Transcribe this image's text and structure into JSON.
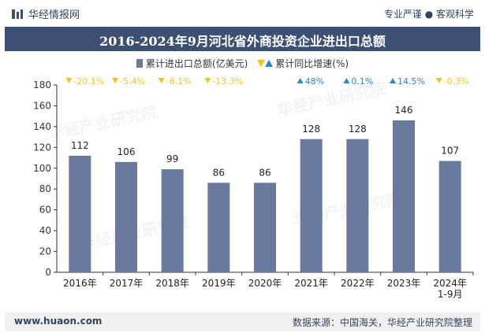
{
  "header": {
    "brand": "华经情报网",
    "slogan": "专业严谨 ● 客观科学"
  },
  "watermark": "华经产业研究院",
  "chart_data": {
    "type": "bar",
    "title": "2016-2024年9月河北省外商投资企业进出口总额",
    "categories": [
      "2016年",
      "2017年",
      "2018年",
      "2019年",
      "2020年",
      "2021年",
      "2022年",
      "2023年",
      "2024年\n1-9月"
    ],
    "series": [
      {
        "name": "累计进出口总额(亿美元)",
        "values": [
          112,
          106,
          99,
          86,
          86,
          128,
          128,
          146,
          107
        ],
        "color": "#6a7a9f"
      }
    ],
    "growth": {
      "name": "累计同比增速(%)",
      "labels": [
        "-20.1%",
        "-5.4%",
        "-6.1%",
        "-13.3%",
        "",
        "48%",
        "0.1%",
        "14.5%",
        "-0.3%"
      ],
      "direction": [
        "down",
        "down",
        "down",
        "down",
        "",
        "up",
        "up",
        "up",
        "down"
      ],
      "up_color": "#2e86c8",
      "down_color": "#f2c21a"
    },
    "ylim": [
      0,
      180
    ],
    "yticks": [
      0,
      20,
      40,
      60,
      80,
      100,
      120,
      140,
      160,
      180
    ],
    "xlabel": "",
    "ylabel": ""
  },
  "footer": {
    "url": "www.huaon.com",
    "source": "数据来源：中国海关，华经产业研究院整理"
  }
}
